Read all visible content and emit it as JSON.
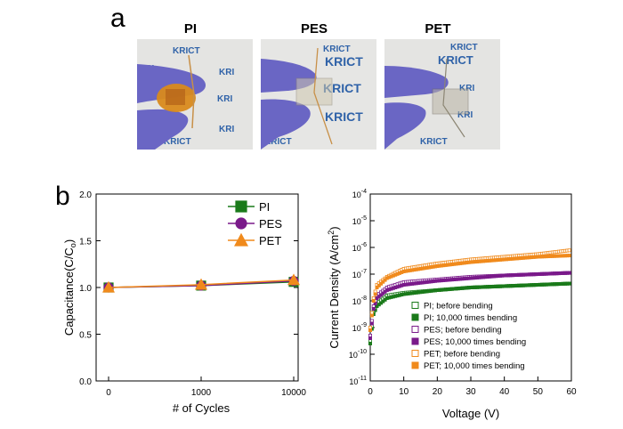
{
  "figure": {
    "panel_a_letter": "a",
    "panel_b_letter": "b",
    "photos": [
      {
        "label": "PI",
        "film_color": "#d98a1c"
      },
      {
        "label": "PES",
        "film_color": "#cfc8b0"
      },
      {
        "label": "PET",
        "film_color": "#b9b4a6"
      }
    ],
    "backdrop_logo_text": "KRICT"
  },
  "chart_data": [
    {
      "type": "line",
      "title": "",
      "xlabel": "# of Cycles",
      "ylabel": "Capacitance(C/C",
      "ylabel_sub": "o",
      "ylabel_close": ")",
      "x_tick_labels": [
        "0",
        "1000",
        "10000"
      ],
      "y_tick_labels": [
        "0.0",
        "0.5",
        "1.0",
        "1.5",
        "2.0"
      ],
      "ylim": [
        0,
        2
      ],
      "legend_placement": "top-right",
      "series": [
        {
          "name": "PI",
          "color": "#1a7a1a",
          "marker": "square",
          "x": [
            0,
            1000,
            10000
          ],
          "values": [
            1.0,
            1.02,
            1.06
          ]
        },
        {
          "name": "PES",
          "color": "#7a1a8a",
          "marker": "circle",
          "x": [
            0,
            1000,
            10000
          ],
          "values": [
            1.0,
            1.02,
            1.07
          ]
        },
        {
          "name": "PET",
          "color": "#f08a1c",
          "marker": "triangle",
          "x": [
            0,
            1000,
            10000
          ],
          "values": [
            1.0,
            1.03,
            1.08
          ]
        }
      ]
    },
    {
      "type": "scatter",
      "title": "",
      "xlabel": "Voltage (V)",
      "ylabel": "Current Density (A/cm",
      "ylabel_sup": "2",
      "ylabel_close": ")",
      "xlim": [
        0,
        60
      ],
      "x_tick_labels": [
        "0",
        "10",
        "20",
        "30",
        "40",
        "50",
        "60"
      ],
      "y_scale": "log",
      "ylim_exp": [
        -11,
        -4
      ],
      "y_tick_labels": [
        {
          "base": "10",
          "exp": "-11"
        },
        {
          "base": "10",
          "exp": "-10"
        },
        {
          "base": "10",
          "exp": "-9"
        },
        {
          "base": "10",
          "exp": "-8"
        },
        {
          "base": "10",
          "exp": "-7"
        },
        {
          "base": "10",
          "exp": "-6"
        },
        {
          "base": "10",
          "exp": "-5"
        },
        {
          "base": "10",
          "exp": "-4"
        }
      ],
      "legend_placement": "bottom-right",
      "series": [
        {
          "name": "PI; before bending",
          "color": "#1a7a1a",
          "filled": false,
          "x": [
            0,
            1,
            2,
            5,
            10,
            20,
            30,
            40,
            50,
            60
          ],
          "y_log10": [
            -9.5,
            -8.4,
            -8.1,
            -7.8,
            -7.7,
            -7.6,
            -7.5,
            -7.45,
            -7.4,
            -7.35
          ]
        },
        {
          "name": "PI; 10,000 times bending",
          "color": "#1a7a1a",
          "filled": true,
          "x": [
            0,
            1,
            2,
            5,
            10,
            20,
            30,
            40,
            50,
            60
          ],
          "y_log10": [
            -9.6,
            -8.5,
            -8.2,
            -7.9,
            -7.75,
            -7.6,
            -7.5,
            -7.45,
            -7.4,
            -7.35
          ]
        },
        {
          "name": "PES; before bending",
          "color": "#7a1a8a",
          "filled": false,
          "x": [
            0,
            1,
            2,
            5,
            10,
            20,
            30,
            40,
            50,
            60
          ],
          "y_log10": [
            -9.3,
            -8.2,
            -7.8,
            -7.5,
            -7.3,
            -7.2,
            -7.1,
            -7.05,
            -7.0,
            -6.95
          ]
        },
        {
          "name": "PES; 10,000 times bending",
          "color": "#7a1a8a",
          "filled": true,
          "x": [
            0,
            1,
            2,
            5,
            10,
            20,
            30,
            40,
            50,
            60
          ],
          "y_log10": [
            -9.4,
            -8.3,
            -7.9,
            -7.6,
            -7.4,
            -7.25,
            -7.15,
            -7.05,
            -7.0,
            -6.95
          ]
        },
        {
          "name": "PET; before bending",
          "color": "#f08a1c",
          "filled": false,
          "x": [
            0,
            1,
            2,
            5,
            10,
            20,
            30,
            40,
            50,
            60
          ],
          "y_log10": [
            -9.0,
            -7.9,
            -7.4,
            -7.1,
            -6.8,
            -6.6,
            -6.45,
            -6.35,
            -6.25,
            -6.1
          ]
        },
        {
          "name": "PET; 10,000 times bending",
          "color": "#f08a1c",
          "filled": true,
          "x": [
            0,
            1,
            2,
            5,
            10,
            20,
            30,
            40,
            50,
            60
          ],
          "y_log10": [
            -9.1,
            -8.0,
            -7.5,
            -7.15,
            -6.9,
            -6.7,
            -6.55,
            -6.45,
            -6.35,
            -6.3
          ]
        }
      ]
    }
  ]
}
